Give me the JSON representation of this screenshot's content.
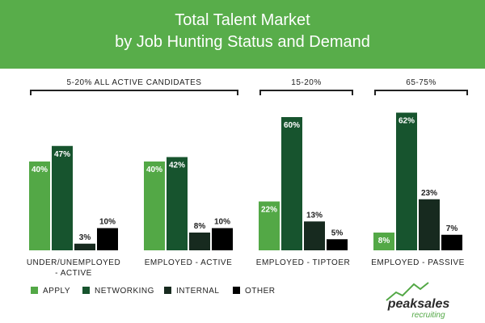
{
  "chart_data": {
    "type": "bar",
    "title": "Total Talent Market\nby Job Hunting Status and Demand",
    "categories": [
      "UNDER/UNEMPLOYED\n- ACTIVE",
      "EMPLOYED - ACTIVE",
      "EMPLOYED - TIPTOER",
      "EMPLOYED - PASSIVE"
    ],
    "series": [
      {
        "name": "APPLY",
        "color": "#53a846",
        "values": [
          40,
          40,
          22,
          8
        ],
        "value_labels": [
          "40%",
          "40%",
          "22%",
          "8%"
        ]
      },
      {
        "name": "NETWORKING",
        "color": "#17542e",
        "values": [
          47,
          42,
          60,
          62
        ],
        "value_labels": [
          "47%",
          "42%",
          "60%",
          "62%"
        ]
      },
      {
        "name": "INTERNAL",
        "color": "#172a1f",
        "values": [
          3,
          8,
          13,
          23
        ],
        "value_labels": [
          "3%",
          "8%",
          "13%",
          "23%"
        ]
      },
      {
        "name": "OTHER",
        "color": "#000000",
        "values": [
          10,
          10,
          5,
          7
        ],
        "value_labels": [
          "10%",
          "10%",
          "5%",
          "7%"
        ]
      }
    ],
    "annotations": [
      "5-20% ALL ACTIVE CANDIDATES",
      "15-20%",
      "65-75%"
    ],
    "legend": "bottom-left",
    "logo": {
      "name": "peaksales",
      "tagline": "recruiting"
    }
  }
}
